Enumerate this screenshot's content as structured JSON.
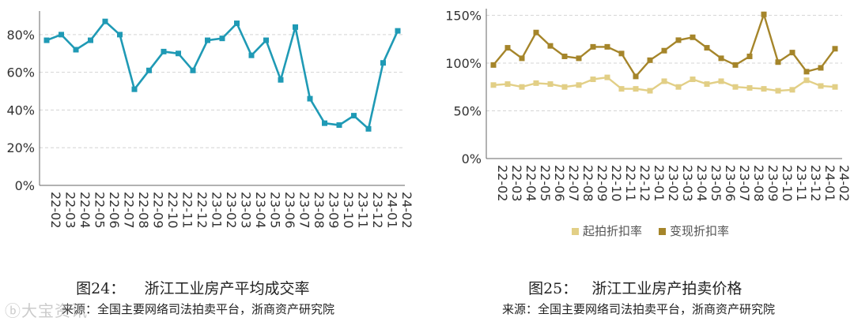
{
  "figures": [
    {
      "caption_num": "图24：",
      "caption_text": "浙江工业房产平均成交率",
      "source": "来源：全国主要网络司法拍卖平台，浙商资产研究院"
    },
    {
      "caption_num": "图25：",
      "caption_text": "浙江工业房产拍卖价格",
      "source": "来源：全国主要网络司法拍卖平台，浙商资产研究院"
    }
  ],
  "watermark": "大宝资讯",
  "colors": {
    "teal": "#1f9ab5",
    "gold_light": "#e2cf86",
    "gold_dark": "#a5852a",
    "grid": "#d4d4d4"
  },
  "chart_data": [
    {
      "type": "line",
      "categories": [
        "22-02",
        "22-03",
        "22-04",
        "22-05",
        "22-06",
        "22-07",
        "22-08",
        "22-09",
        "22-10",
        "22-11",
        "22-12",
        "23-01",
        "23-02",
        "23-03",
        "23-04",
        "23-05",
        "23-06",
        "23-07",
        "23-08",
        "23-09",
        "23-10",
        "23-11",
        "23-12",
        "24-01",
        "24-02"
      ],
      "series": [
        {
          "name": "",
          "values": [
            77,
            80,
            72,
            77,
            87,
            80,
            51,
            61,
            71,
            70,
            61,
            77,
            78,
            86,
            69,
            77,
            56,
            84,
            46,
            33,
            32,
            37,
            30,
            65,
            82
          ]
        }
      ],
      "ylim": [
        0,
        90
      ],
      "yticks": [
        "0%",
        "20%",
        "40%",
        "60%",
        "80%"
      ],
      "ytick_values": [
        0,
        20,
        40,
        60,
        80
      ]
    },
    {
      "type": "line",
      "categories": [
        "22-02",
        "22-03",
        "22-04",
        "22-05",
        "22-06",
        "22-07",
        "22-08",
        "22-09",
        "22-10",
        "22-11",
        "22-12",
        "23-01",
        "23-02",
        "23-03",
        "23-04",
        "23-05",
        "23-06",
        "23-07",
        "23-08",
        "23-09",
        "23-10",
        "23-11",
        "23-12",
        "24-01",
        "24-02"
      ],
      "series": [
        {
          "name": "起拍折扣率",
          "values": [
            77,
            78,
            75,
            79,
            78,
            75,
            77,
            83,
            85,
            73,
            73,
            71,
            81,
            75,
            83,
            78,
            81,
            75,
            74,
            73,
            71,
            72,
            82,
            76,
            75
          ]
        },
        {
          "name": "变现折扣率",
          "values": [
            98,
            116,
            105,
            132,
            118,
            107,
            105,
            117,
            117,
            110,
            86,
            103,
            113,
            124,
            127,
            116,
            105,
            98,
            107,
            151,
            101,
            111,
            91,
            95,
            115
          ]
        }
      ],
      "ylim": [
        0,
        152
      ],
      "yticks": [
        "0%",
        "50%",
        "100%",
        "150%"
      ],
      "ytick_values": [
        0,
        50,
        100,
        150
      ],
      "legend_position": "bottom"
    }
  ]
}
